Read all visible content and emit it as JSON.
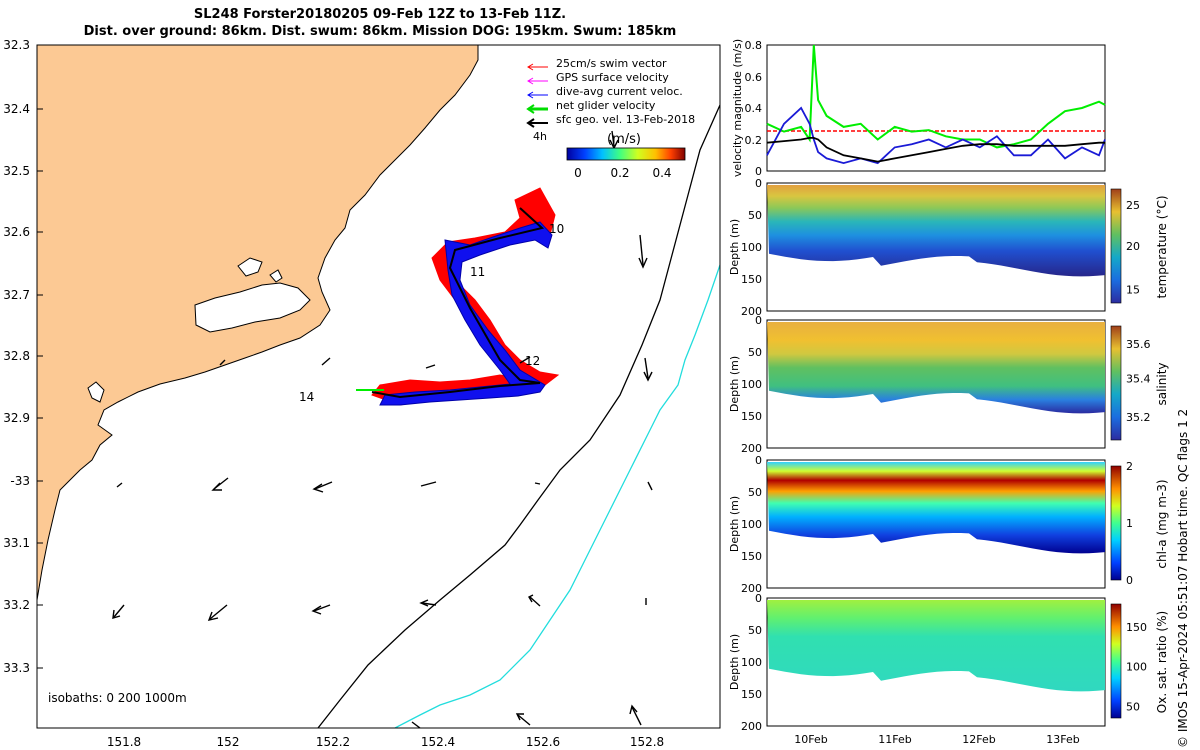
{
  "title_line1": "SL248 Forster20180205 09-Feb 12Z to 13-Feb 11Z.",
  "title_line2": "Dist. over ground: 86km. Dist. swum: 86km. Mission DOG: 195km. Swum: 185km",
  "legend": {
    "items": [
      {
        "label": "25cm/s swim vector",
        "color": "#ff0000"
      },
      {
        "label": "GPS surface velocity",
        "color": "#ff00ff"
      },
      {
        "label": "dive-avg current veloc.",
        "color": "#0000ff"
      },
      {
        "label": "net glider velocity",
        "color": "#00dd00"
      },
      {
        "label": "sfc geo. vel. 13-Feb-2018",
        "color": "#000000"
      }
    ],
    "scale_label": "4h",
    "colorbar_title": "(m/s)",
    "colorbar_ticks": [
      "0",
      "0.2",
      "0.4"
    ]
  },
  "map": {
    "lat_ticks": [
      "32.3",
      "32.4",
      "32.5",
      "32.6",
      "32.7",
      "32.8",
      "32.9",
      "-33",
      "33.1",
      "33.2",
      "33.3"
    ],
    "lon_ticks": [
      "151.8",
      "152",
      "152.2",
      "152.4",
      "152.6",
      "152.8"
    ],
    "day_labels": [
      "10",
      "11",
      "12",
      "14"
    ],
    "isobath_text": "isobaths: 0   200  1000m",
    "land_color": "#fcc994"
  },
  "chart_data": [
    {
      "type": "line",
      "ylabel": "velocity magnitude (m/s)",
      "yticks": [
        "0",
        "0.2",
        "0.4",
        "0.6",
        "0.8"
      ],
      "ylim": [
        0,
        0.8
      ],
      "x": [
        9.5,
        9.7,
        9.9,
        10.0,
        10.05,
        10.1,
        10.2,
        10.4,
        10.6,
        10.8,
        11.0,
        11.2,
        11.4,
        11.6,
        11.8,
        12.0,
        12.2,
        12.4,
        12.6,
        12.8,
        13.0,
        13.2,
        13.4,
        13.47
      ],
      "series": [
        {
          "color": "#00ee00",
          "values": [
            0.3,
            0.25,
            0.28,
            0.2,
            0.8,
            0.45,
            0.35,
            0.28,
            0.3,
            0.2,
            0.28,
            0.25,
            0.26,
            0.22,
            0.2,
            0.2,
            0.15,
            0.17,
            0.2,
            0.3,
            0.38,
            0.4,
            0.44,
            0.42
          ]
        },
        {
          "color": "#1a1ad6",
          "values": [
            0.1,
            0.3,
            0.4,
            0.3,
            0.2,
            0.12,
            0.08,
            0.05,
            0.08,
            0.05,
            0.15,
            0.17,
            0.2,
            0.15,
            0.2,
            0.15,
            0.22,
            0.1,
            0.1,
            0.2,
            0.08,
            0.15,
            0.1,
            0.2
          ]
        },
        {
          "color": "#000000",
          "values": [
            0.18,
            0.19,
            0.2,
            0.21,
            0.21,
            0.2,
            0.15,
            0.1,
            0.08,
            0.06,
            0.08,
            0.1,
            0.12,
            0.14,
            0.16,
            0.17,
            0.17,
            0.16,
            0.16,
            0.16,
            0.16,
            0.17,
            0.18,
            0.18
          ]
        }
      ],
      "reference_line": 0.25
    },
    {
      "type": "heatmap",
      "ylabel": "Depth (m)",
      "yticks": [
        "0",
        "50",
        "100",
        "150",
        "200"
      ],
      "colorbar_label": "temperature (°C)",
      "colorbar_ticks": [
        "25",
        "20",
        "15"
      ],
      "cmap": "parula"
    },
    {
      "type": "heatmap",
      "ylabel": "Depth (m)",
      "yticks": [
        "0",
        "50",
        "100",
        "150",
        "200"
      ],
      "colorbar_label": "salinity",
      "colorbar_ticks": [
        "35.6",
        "35.4",
        "35.2"
      ],
      "cmap": "parula"
    },
    {
      "type": "heatmap",
      "ylabel": "Depth (m)",
      "yticks": [
        "0",
        "50",
        "100",
        "150",
        "200"
      ],
      "colorbar_label": "chl-a (mg m-3)",
      "colorbar_ticks": [
        "2",
        "1",
        "0"
      ],
      "cmap": "jet"
    },
    {
      "type": "heatmap",
      "ylabel": "Depth (m)",
      "yticks": [
        "0",
        "50",
        "100",
        "150",
        "200"
      ],
      "colorbar_label": "Ox. sat. ratio (%)",
      "colorbar_ticks": [
        "150",
        "100",
        "50"
      ],
      "cmap": "jet"
    }
  ],
  "time_ticks": [
    "10Feb",
    "11Feb",
    "12Feb",
    "13Feb"
  ],
  "credit": "© IMOS 15-Apr-2024 05:51:07 Hobart time. QC flags 1  2"
}
